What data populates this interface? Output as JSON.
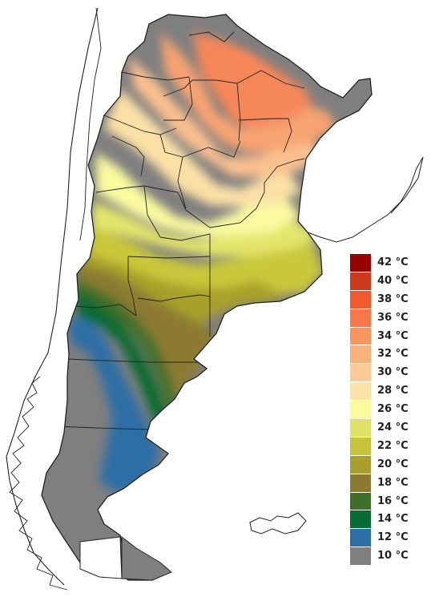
{
  "map": {
    "country": "Argentina",
    "bands": [
      {
        "name": "temp-band-34",
        "color": "#f5875a"
      },
      {
        "name": "temp-band-32",
        "color": "#f7a372"
      },
      {
        "name": "temp-band-30",
        "color": "#fbc08f"
      },
      {
        "name": "temp-band-28",
        "color": "#fbe0a6"
      },
      {
        "name": "temp-band-26",
        "color": "#fafaa0"
      },
      {
        "name": "temp-band-24",
        "color": "#e3e56a"
      },
      {
        "name": "temp-band-22",
        "color": "#c9c83a"
      },
      {
        "name": "temp-band-20",
        "color": "#a9a02c"
      },
      {
        "name": "temp-band-18",
        "color": "#8c7a32"
      },
      {
        "name": "temp-band-16",
        "color": "#3f6f2b"
      },
      {
        "name": "temp-band-14",
        "color": "#0a6a33"
      },
      {
        "name": "temp-band-12",
        "color": "#2d6ea6"
      },
      {
        "name": "temp-band-10",
        "color": "#7f7f7f"
      }
    ]
  },
  "legend": {
    "items": [
      {
        "label": "42 °C",
        "color": "#990000"
      },
      {
        "label": "40 °C",
        "color": "#cc3a1d"
      },
      {
        "label": "38 °C",
        "color": "#f25a2e"
      },
      {
        "label": "36 °C",
        "color": "#f5784a"
      },
      {
        "label": "34 °C",
        "color": "#f7955f"
      },
      {
        "label": "32 °C",
        "color": "#f9b17c"
      },
      {
        "label": "30 °C",
        "color": "#fbca96"
      },
      {
        "label": "28 °C",
        "color": "#fce3a8"
      },
      {
        "label": "26 °C",
        "color": "#fbfa9c"
      },
      {
        "label": "24 °C",
        "color": "#e0e268"
      },
      {
        "label": "22 °C",
        "color": "#c6c43c"
      },
      {
        "label": "20 °C",
        "color": "#a99e2e"
      },
      {
        "label": "18 °C",
        "color": "#8c7a32"
      },
      {
        "label": "16 °C",
        "color": "#3f6f2b"
      },
      {
        "label": "14 °C",
        "color": "#0a6a33"
      },
      {
        "label": "12 °C",
        "color": "#2d6ea6"
      },
      {
        "label": "10 °C",
        "color": "#7f7f7f"
      }
    ]
  }
}
